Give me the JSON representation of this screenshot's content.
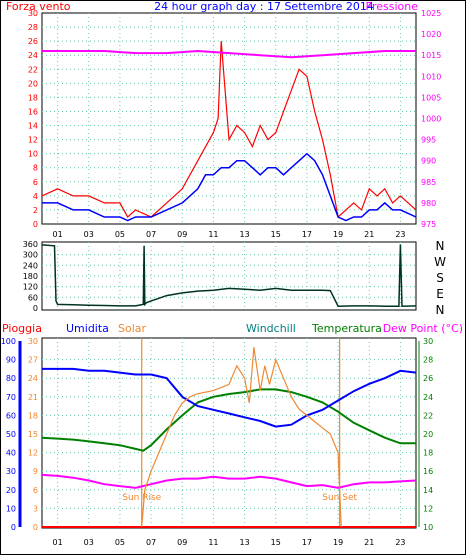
{
  "top": {
    "left_label": "Forza vento",
    "title": "24 hour graph day : 17 Settembre 2014",
    "right_label": "Pressione"
  },
  "wind": {
    "right_labels": [
      "N",
      "W",
      "S",
      "E",
      "N"
    ]
  },
  "bottom": {
    "labels": [
      "Pioggia",
      "Umidita",
      "Solar",
      "Windchill",
      "Temperatura",
      "Dew Point (°C)"
    ],
    "sunrise_label": "Sun Rise",
    "sunset_label": "Sun Set"
  },
  "colors": {
    "wind_speed": "#ff0000",
    "wind_avg": "#0000ff",
    "pressure": "#ff00ff",
    "direction": "#003322",
    "rain": "#ff0000",
    "humidity": "#0000ff",
    "solar": "#ee8833",
    "windchill": "#008080",
    "temperature": "#008000",
    "dewpoint": "#ff00ff",
    "sun_line": "#ee8833",
    "grid": "#66ccaa",
    "axis_text_left": "#ff0000",
    "axis_text_right": "#ff00ff",
    "axis_text_blue": "#0000ff",
    "axis_text_green": "#008000"
  },
  "chart_data": [
    {
      "type": "line",
      "name": "wind-and-pressure",
      "x_ticks": [
        "01",
        "03",
        "05",
        "07",
        "09",
        "11",
        "13",
        "15",
        "17",
        "19",
        "21",
        "23"
      ],
      "y_left_ticks": [
        0,
        2,
        4,
        6,
        8,
        10,
        12,
        14,
        16,
        18,
        20,
        22,
        24,
        26,
        28,
        30
      ],
      "y_right_ticks": [
        975,
        980,
        985,
        990,
        995,
        1000,
        1005,
        1010,
        1015,
        1020,
        1025
      ],
      "ylim_left": [
        0,
        30
      ],
      "ylim_right": [
        975,
        1025
      ],
      "xlim": [
        0,
        24
      ],
      "series": [
        {
          "key": "speed",
          "x": [
            0,
            1,
            2,
            3,
            4,
            5,
            5.5,
            6,
            7,
            8,
            9,
            9.5,
            10,
            10.5,
            11,
            11.3,
            11.5,
            12,
            12.5,
            13,
            13.5,
            14,
            14.5,
            15,
            15.5,
            16,
            16.5,
            17,
            17.5,
            18,
            18.5,
            19,
            19.5,
            20,
            20.5,
            21,
            21.5,
            22,
            22.5,
            23,
            23.5,
            24
          ],
          "y": [
            4,
            5,
            4,
            4,
            3,
            3,
            1,
            2,
            1,
            3,
            5,
            7,
            9,
            11,
            13,
            15,
            26,
            12,
            14,
            13,
            11,
            14,
            12,
            13,
            16,
            19,
            22,
            21,
            16,
            12,
            7,
            1,
            2,
            3,
            2,
            5,
            4,
            5,
            3,
            4,
            3,
            2
          ]
        },
        {
          "key": "avg",
          "x": [
            0,
            1,
            2,
            3,
            4,
            5,
            5.5,
            6,
            7,
            8,
            9,
            9.5,
            10,
            10.5,
            11,
            11.5,
            12,
            12.5,
            13,
            13.5,
            14,
            14.5,
            15,
            15.5,
            16,
            16.5,
            17,
            17.5,
            18,
            18.5,
            19,
            19.5,
            20,
            20.5,
            21,
            21.5,
            22,
            22.5,
            23,
            23.5,
            24
          ],
          "y": [
            3,
            3,
            2,
            2,
            1,
            1,
            0.5,
            1,
            1,
            2,
            3,
            4,
            5,
            7,
            7,
            8,
            8,
            9,
            9,
            8,
            7,
            8,
            8,
            7,
            8,
            9,
            10,
            9,
            7,
            4,
            1,
            0.5,
            1,
            1,
            2,
            2,
            3,
            2,
            2,
            1.5,
            1
          ]
        },
        {
          "key": "pressure",
          "x": [
            0,
            2,
            4,
            6,
            8,
            10,
            12,
            14,
            16,
            18,
            20,
            22,
            24
          ],
          "y": [
            1016,
            1016,
            1016,
            1015.5,
            1015.5,
            1016,
            1015.5,
            1015,
            1014.5,
            1015,
            1015.5,
            1016,
            1016
          ]
        }
      ]
    },
    {
      "type": "line",
      "name": "wind-direction",
      "y_ticks": [
        0,
        60,
        120,
        180,
        240,
        300,
        360
      ],
      "ylim": [
        0,
        360
      ],
      "xlim": [
        0,
        24
      ],
      "series": [
        {
          "key": "direction",
          "x": [
            0,
            0.8,
            0.9,
            1,
            2,
            3,
            4,
            5,
            6,
            6.5,
            6.55,
            6.6,
            6.7,
            7,
            8,
            9,
            10,
            11,
            12,
            13,
            14,
            15,
            16,
            17,
            18,
            18.5,
            19,
            20,
            21,
            22,
            22.9,
            23,
            23.1,
            24
          ],
          "y": [
            355,
            350,
            40,
            20,
            18,
            15,
            14,
            12,
            12,
            20,
            350,
            20,
            30,
            40,
            70,
            85,
            95,
            100,
            110,
            105,
            100,
            110,
            100,
            100,
            100,
            98,
            10,
            12,
            12,
            10,
            10,
            358,
            10,
            12
          ]
        }
      ]
    },
    {
      "type": "line",
      "name": "rain-humidity-solar-temperature",
      "x_ticks": [
        "01",
        "03",
        "05",
        "07",
        "09",
        "11",
        "13",
        "15",
        "17",
        "19",
        "21",
        "23"
      ],
      "y_left_ticks_humidity": [
        0,
        10,
        20,
        30,
        40,
        50,
        60,
        70,
        80,
        90,
        100
      ],
      "y_left_ticks_solar": [
        0,
        3,
        6,
        9,
        12,
        15,
        18,
        21,
        24,
        27,
        30
      ],
      "y_right_ticks": [
        10,
        12,
        14,
        16,
        18,
        20,
        22,
        24,
        26,
        28,
        30
      ],
      "ylim_humidity": [
        0,
        100
      ],
      "ylim_temperature": [
        10,
        30
      ],
      "xlim": [
        0,
        24
      ],
      "sunrise_x": 6.4,
      "sunset_x": 19.1,
      "series": [
        {
          "key": "humidity",
          "x": [
            0,
            1,
            2,
            3,
            4,
            5,
            6,
            7,
            8,
            9,
            10,
            11,
            12,
            13,
            14,
            15,
            16,
            17,
            18,
            19,
            20,
            21,
            22,
            23,
            24
          ],
          "y": [
            85,
            85,
            85,
            84,
            84,
            83,
            82,
            82,
            80,
            70,
            65,
            63,
            61,
            59,
            57,
            54,
            55,
            60,
            63,
            68,
            73,
            77,
            80,
            84,
            83
          ]
        },
        {
          "key": "solar",
          "x": [
            6.4,
            6.6,
            7,
            7.5,
            8,
            8.5,
            9,
            9.5,
            10,
            11,
            12,
            12.5,
            13,
            13.3,
            13.6,
            14,
            14.3,
            14.6,
            15,
            15.5,
            16,
            16.5,
            17,
            17.5,
            18,
            18.5,
            19,
            19.2
          ],
          "y": [
            0,
            6,
            9,
            12,
            15,
            18,
            20,
            21,
            21.5,
            22,
            23,
            26,
            24,
            20,
            29,
            22,
            26,
            23,
            27,
            24,
            21,
            19,
            18,
            17,
            16,
            15,
            12,
            0
          ]
        },
        {
          "key": "temperature",
          "x": [
            0,
            1,
            2,
            3,
            4,
            5,
            6,
            6.5,
            7,
            8,
            9,
            10,
            11,
            12,
            13,
            14,
            15,
            16,
            17,
            18,
            19,
            20,
            21,
            22,
            23,
            24
          ],
          "y": [
            19.6,
            19.5,
            19.4,
            19.2,
            19,
            18.8,
            18.4,
            18.2,
            18.8,
            20.5,
            22,
            23.4,
            24,
            24.3,
            24.5,
            24.8,
            24.8,
            24.5,
            24,
            23.4,
            22.4,
            21.2,
            20.4,
            19.6,
            19,
            19
          ]
        },
        {
          "key": "dewpoint",
          "x": [
            0,
            1,
            2,
            3,
            4,
            5,
            6,
            7,
            8,
            9,
            10,
            11,
            12,
            13,
            14,
            15,
            16,
            17,
            18,
            19,
            20,
            21,
            22,
            23,
            24
          ],
          "y": [
            15.6,
            15.5,
            15.3,
            15,
            14.6,
            14.4,
            14.2,
            14.6,
            15,
            15.2,
            15.2,
            15.4,
            15.2,
            15.2,
            15.4,
            15.2,
            14.8,
            14.4,
            14.5,
            14.2,
            14.6,
            14.8,
            14.8,
            14.9,
            15
          ]
        },
        {
          "key": "rain",
          "x": [
            0,
            24
          ],
          "y": [
            0,
            0
          ]
        }
      ]
    }
  ]
}
